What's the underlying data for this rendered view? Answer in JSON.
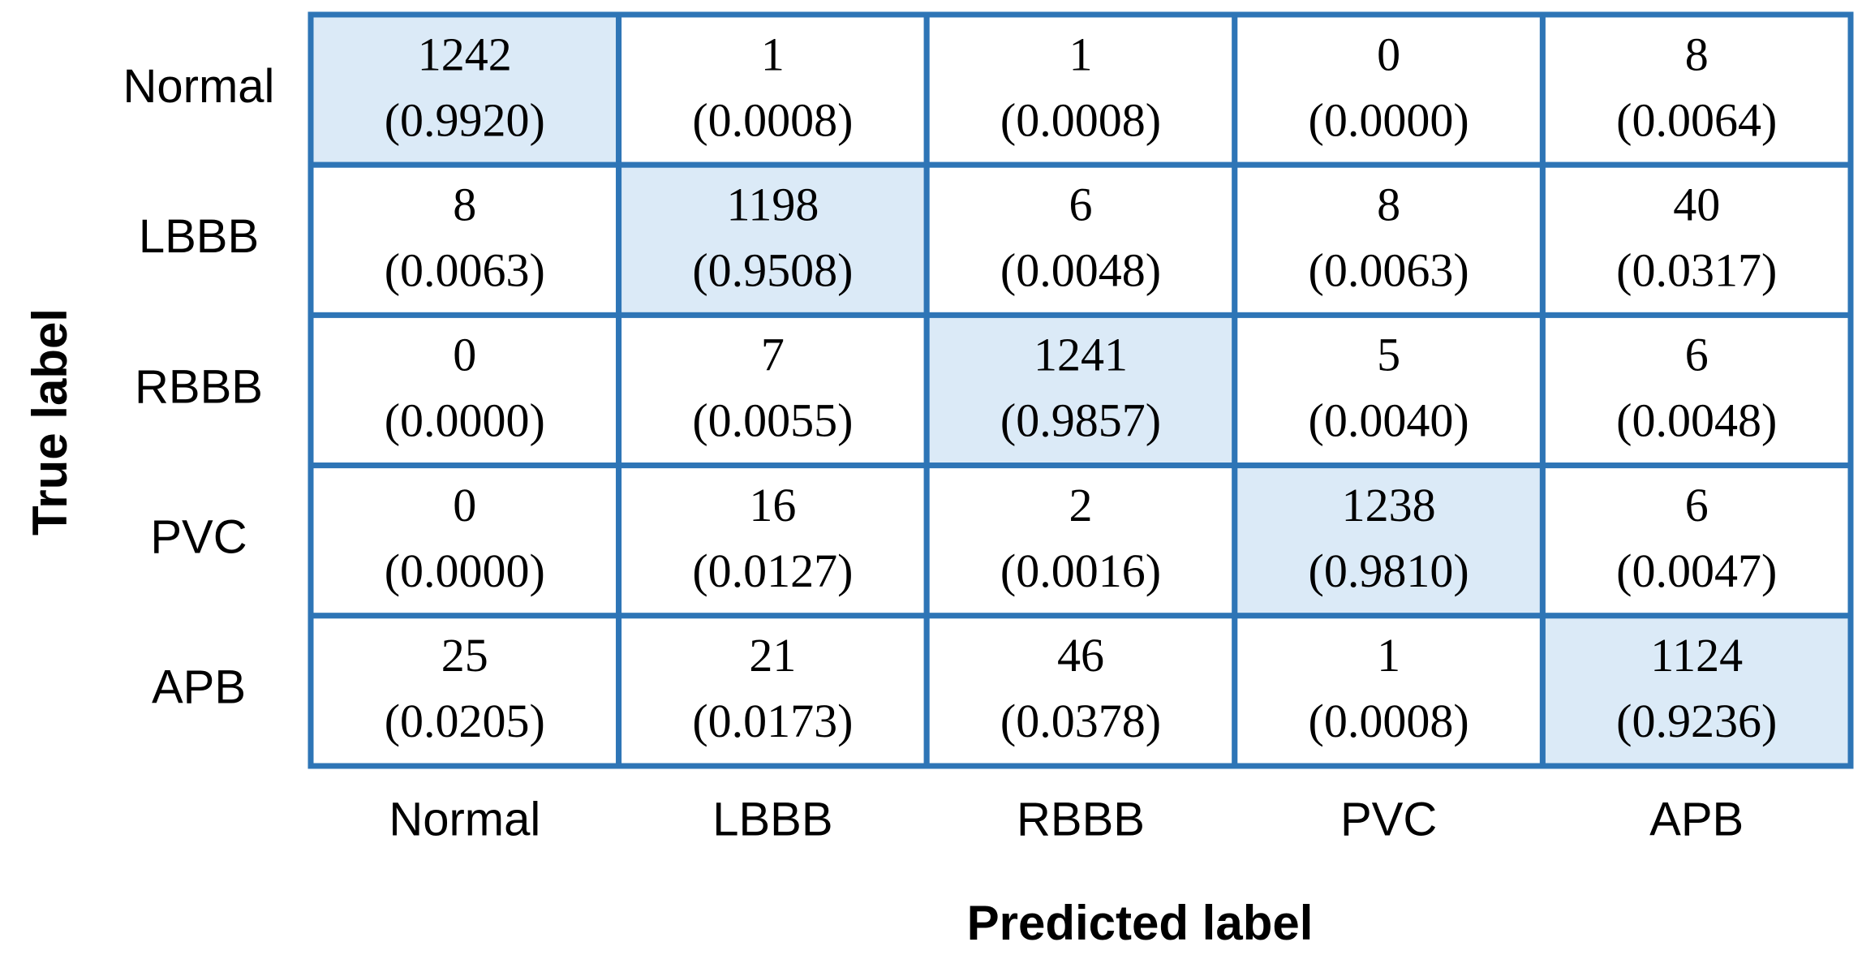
{
  "chart_data": {
    "type": "heatmap",
    "x_label": "Predicted label",
    "y_label": "True label",
    "x_categories": [
      "Normal",
      "LBBB",
      "RBBB",
      "PVC",
      "APB"
    ],
    "y_categories": [
      "Normal",
      "LBBB",
      "RBBB",
      "PVC",
      "APB"
    ],
    "values": [
      [
        1242,
        1,
        1,
        0,
        8
      ],
      [
        8,
        1198,
        6,
        8,
        40
      ],
      [
        0,
        7,
        1241,
        5,
        6
      ],
      [
        0,
        16,
        2,
        1238,
        6
      ],
      [
        25,
        21,
        46,
        1,
        1124
      ]
    ],
    "proportions": [
      [
        0.992,
        0.0008,
        0.0008,
        0,
        0.0064
      ],
      [
        0.0063,
        0.9508,
        0.0048,
        0.0063,
        0.0317
      ],
      [
        0,
        0.0055,
        0.9857,
        0.004,
        0.0048
      ],
      [
        0,
        0.0127,
        0.0016,
        0.981,
        0.0047
      ],
      [
        0.0205,
        0.0173,
        0.0378,
        0.0008,
        0.9236
      ]
    ],
    "proportion_labels": [
      [
        "(0.9920)",
        "(0.0008)",
        "(0.0008)",
        "(0.0000)",
        "(0.0064)"
      ],
      [
        "(0.0063)",
        "(0.9508)",
        "(0.0048)",
        "(0.0063)",
        "(0.0317)"
      ],
      [
        "(0.0000)",
        "(0.0055)",
        "(0.9857)",
        "(0.0040)",
        "(0.0048)"
      ],
      [
        "(0.0000)",
        "(0.0127)",
        "(0.0016)",
        "(0.9810)",
        "(0.0047)"
      ],
      [
        "(0.0205)",
        "(0.0173)",
        "(0.0378)",
        "(0.0008)",
        "(0.9236)"
      ]
    ],
    "cell_color": "#ffffff",
    "diagonal_color": "#dbeaf7",
    "border_color": "#2e75b6"
  }
}
